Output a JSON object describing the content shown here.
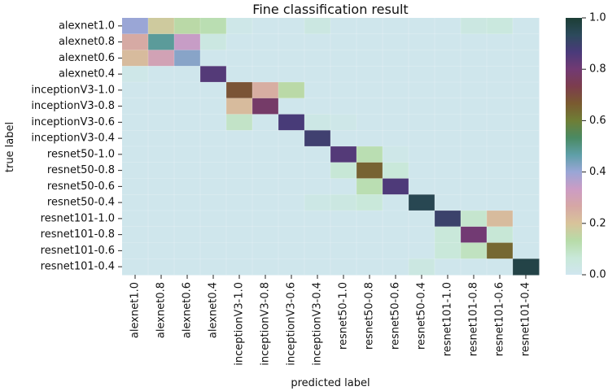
{
  "chart_data": {
    "type": "heatmap",
    "title": "Fine classification result",
    "xlabel": "predicted label",
    "ylabel": "true label",
    "x_categories": [
      "alexnet1.0",
      "alexnet0.8",
      "alexnet0.6",
      "alexnet0.4",
      "inceptionV3-1.0",
      "inceptionV3-0.8",
      "inceptionV3-0.6",
      "inceptionV3-0.4",
      "resnet50-1.0",
      "resnet50-0.8",
      "resnet50-0.6",
      "resnet50-0.4",
      "resnet101-1.0",
      "resnet101-0.8",
      "resnet101-0.6",
      "resnet101-0.4"
    ],
    "y_categories": [
      "alexnet1.0",
      "alexnet0.8",
      "alexnet0.6",
      "alexnet0.4",
      "inceptionV3-1.0",
      "inceptionV3-0.8",
      "inceptionV3-0.6",
      "inceptionV3-0.4",
      "resnet50-1.0",
      "resnet50-0.8",
      "resnet50-0.6",
      "resnet50-0.4",
      "resnet101-1.0",
      "resnet101-0.8",
      "resnet101-0.6",
      "resnet101-0.4"
    ],
    "values": [
      [
        0.4,
        0.18,
        0.14,
        0.12,
        0.02,
        0.01,
        0.01,
        0.04,
        0.01,
        0.01,
        0.01,
        0.01,
        0.01,
        0.04,
        0.05,
        0.01
      ],
      [
        0.26,
        0.48,
        0.34,
        0.04,
        0.01,
        0.01,
        0.01,
        0.01,
        0.01,
        0.01,
        0.01,
        0.01,
        0.01,
        0.01,
        0.01,
        0.01
      ],
      [
        0.22,
        0.3,
        0.42,
        0.01,
        0.01,
        0.01,
        0.01,
        0.01,
        0.01,
        0.01,
        0.01,
        0.01,
        0.01,
        0.01,
        0.01,
        0.01
      ],
      [
        0.02,
        0.01,
        0.01,
        0.85,
        0.01,
        0.01,
        0.01,
        0.01,
        0.01,
        0.01,
        0.01,
        0.01,
        0.01,
        0.01,
        0.01,
        0.01
      ],
      [
        0.01,
        0.01,
        0.01,
        0.01,
        0.68,
        0.25,
        0.14,
        0.01,
        0.01,
        0.01,
        0.01,
        0.01,
        0.01,
        0.01,
        0.01,
        0.01
      ],
      [
        0.01,
        0.01,
        0.01,
        0.01,
        0.22,
        0.78,
        0.01,
        0.01,
        0.01,
        0.01,
        0.01,
        0.01,
        0.01,
        0.01,
        0.01,
        0.01
      ],
      [
        0.01,
        0.01,
        0.01,
        0.01,
        0.09,
        0.01,
        0.87,
        0.03,
        0.02,
        0.01,
        0.01,
        0.01,
        0.01,
        0.01,
        0.01,
        0.01
      ],
      [
        0.01,
        0.01,
        0.01,
        0.01,
        0.01,
        0.01,
        0.01,
        0.89,
        0.01,
        0.01,
        0.01,
        0.01,
        0.01,
        0.01,
        0.01,
        0.01
      ],
      [
        0.01,
        0.01,
        0.01,
        0.01,
        0.01,
        0.01,
        0.01,
        0.01,
        0.85,
        0.12,
        0.02,
        0.01,
        0.01,
        0.01,
        0.01,
        0.01
      ],
      [
        0.01,
        0.01,
        0.01,
        0.01,
        0.01,
        0.01,
        0.01,
        0.01,
        0.07,
        0.65,
        0.06,
        0.01,
        0.01,
        0.01,
        0.01,
        0.01
      ],
      [
        0.01,
        0.01,
        0.01,
        0.01,
        0.01,
        0.01,
        0.01,
        0.01,
        0.01,
        0.12,
        0.86,
        0.01,
        0.01,
        0.01,
        0.01,
        0.01
      ],
      [
        0.01,
        0.01,
        0.01,
        0.01,
        0.01,
        0.01,
        0.01,
        0.03,
        0.04,
        0.06,
        0.01,
        0.95,
        0.01,
        0.01,
        0.01,
        0.01
      ],
      [
        0.01,
        0.01,
        0.01,
        0.01,
        0.01,
        0.01,
        0.01,
        0.01,
        0.01,
        0.01,
        0.01,
        0.01,
        0.9,
        0.08,
        0.22,
        0.01
      ],
      [
        0.01,
        0.01,
        0.01,
        0.01,
        0.01,
        0.01,
        0.01,
        0.01,
        0.01,
        0.01,
        0.01,
        0.01,
        0.06,
        0.8,
        0.07,
        0.01
      ],
      [
        0.01,
        0.01,
        0.01,
        0.01,
        0.01,
        0.01,
        0.01,
        0.01,
        0.01,
        0.01,
        0.01,
        0.01,
        0.06,
        0.1,
        0.64,
        0.01
      ],
      [
        0.01,
        0.01,
        0.01,
        0.01,
        0.01,
        0.01,
        0.01,
        0.01,
        0.01,
        0.01,
        0.01,
        0.04,
        0.01,
        0.01,
        0.01,
        0.97
      ]
    ],
    "colorbar": {
      "range": [
        0.0,
        1.0
      ],
      "ticks": [
        "0.0",
        "0.2",
        "0.4",
        "0.6",
        "0.8",
        "1.0"
      ]
    },
    "colormap": [
      "#d0e6ef",
      "#c8e8d8",
      "#b7dba8",
      "#d8c39a",
      "#d6a7a5",
      "#cc9cc4",
      "#9aa6d6",
      "#5f9fa8",
      "#4a8a63",
      "#6f7e36",
      "#7a5a30",
      "#7c3d4d",
      "#723a73",
      "#4a3a7a",
      "#2c4a5c",
      "#1c3e35"
    ]
  }
}
